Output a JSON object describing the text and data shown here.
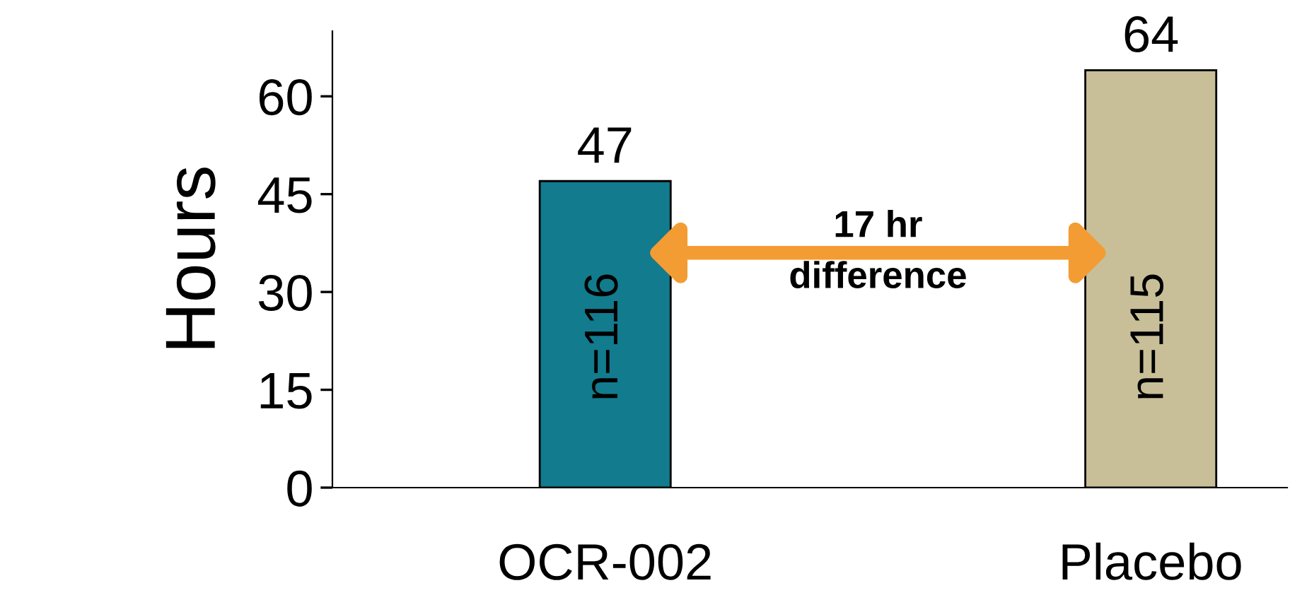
{
  "chart_data": {
    "type": "bar",
    "ylabel": "Hours",
    "categories": [
      "OCR-002",
      "Placebo"
    ],
    "values": [
      47,
      64
    ],
    "colors": [
      "#127b8e",
      "#c8bf98"
    ],
    "ylim": [
      0,
      70
    ],
    "yticks": [
      0,
      15,
      30,
      45,
      60
    ],
    "data_labels": true,
    "grid": false,
    "annotations": [
      "n=116",
      "n=115",
      "17 hr\ndifference"
    ]
  }
}
